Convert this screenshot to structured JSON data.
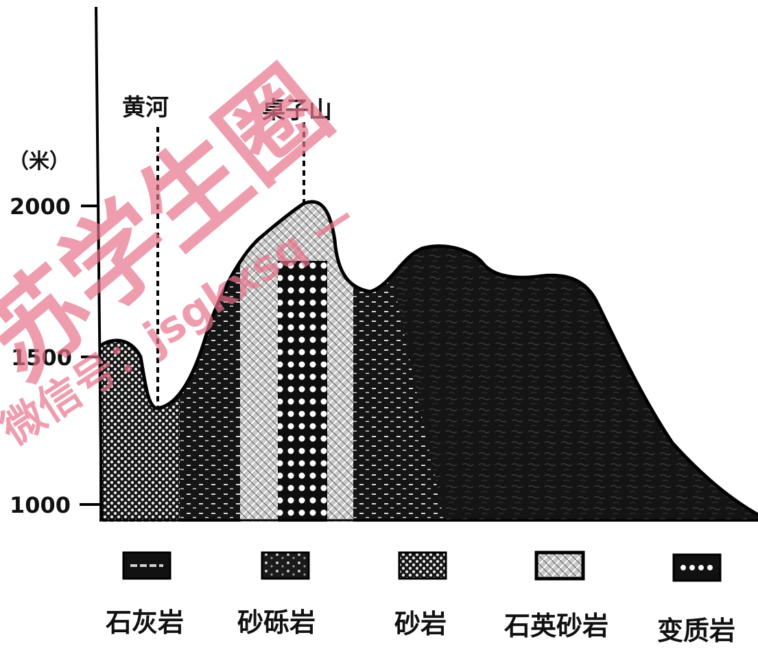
{
  "axis": {
    "unit": "（米）",
    "ticks": [
      "2000",
      "1500",
      "1000"
    ]
  },
  "features": {
    "river": "黄河",
    "peak": "桌子山"
  },
  "legend": [
    {
      "label": "石灰岩",
      "pattern": "limestone"
    },
    {
      "label": "砂砾岩",
      "pattern": "conglomerate"
    },
    {
      "label": "砂岩",
      "pattern": "sandstone"
    },
    {
      "label": "石英砂岩",
      "pattern": "quartz-sandstone"
    },
    {
      "label": "变质岩",
      "pattern": "metamorphic"
    }
  ],
  "watermark": {
    "text": "苏学生圈",
    "sub": "微信号：jsgkxsq —",
    "color": "#e8748c"
  }
}
